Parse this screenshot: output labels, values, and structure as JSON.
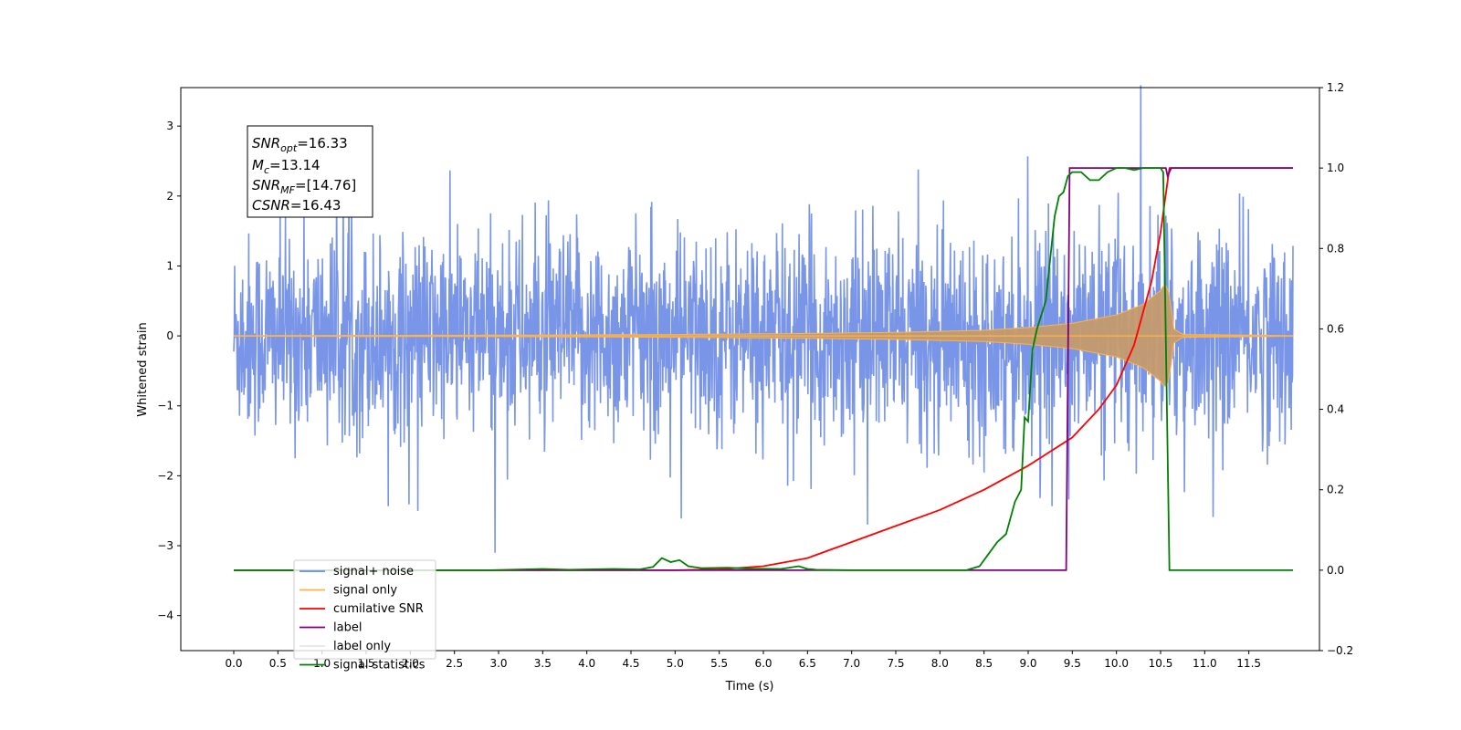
{
  "chart_data": {
    "type": "line",
    "title": "",
    "xlabel": "Time (s)",
    "ylabel": "Whitened strain",
    "ylabel_right": "",
    "xlim": [
      -0.6,
      12.3
    ],
    "ylim": [
      -4.5,
      3.55
    ],
    "ylim_right": [
      -0.2,
      1.2
    ],
    "x_ticks": [
      "0.0",
      "0.5",
      "1.0",
      "1.5",
      "2.0",
      "2.5",
      "3.0",
      "3.5",
      "4.0",
      "4.5",
      "5.0",
      "5.5",
      "6.0",
      "6.5",
      "7.0",
      "7.5",
      "8.0",
      "8.5",
      "9.0",
      "9.5",
      "10.0",
      "10.5",
      "11.0",
      "11.5"
    ],
    "y_ticks": [
      "3",
      "2",
      "1",
      "0",
      "−1",
      "−2",
      "−3",
      "−4"
    ],
    "y_ticks_right": [
      "1.2",
      "1.0",
      "0.8",
      "0.6",
      "0.4",
      "0.2",
      "0.0",
      "−0.2"
    ],
    "grid": false,
    "legend_position": "lower-left",
    "annotation": {
      "snr_opt_label": "SNR",
      "snr_opt_sub": "opt",
      "snr_opt_value": "=16.33",
      "mc_label": "M",
      "mc_sub": "c",
      "mc_value": "=13.14",
      "snr_mf_label": "SNR",
      "snr_mf_sub": "MF",
      "snr_mf_value": "=[14.76]",
      "csnr_label": "CSNR",
      "csnr_value": "=16.43"
    },
    "series": [
      {
        "name": "signal+ noise",
        "color": "#6a8ae6",
        "axis": "left",
        "x_range": [
          0,
          12
        ],
        "envelope_typical": 1.1,
        "envelope_peak": 3.2
      },
      {
        "name": "signal only",
        "color": "#ffb347",
        "axis": "left",
        "x": [
          0,
          3.0,
          5.0,
          6.5,
          7.5,
          8.5,
          9.0,
          9.5,
          10.0,
          10.3,
          10.5,
          10.55,
          10.6,
          10.65,
          10.75,
          12.0
        ],
        "amplitude": [
          0.005,
          0.01,
          0.02,
          0.035,
          0.05,
          0.08,
          0.12,
          0.18,
          0.3,
          0.45,
          0.65,
          0.75,
          0.6,
          0.1,
          0.02,
          0.005
        ]
      },
      {
        "name": "cumilative SNR",
        "color": "#ff0000",
        "axis": "right",
        "x": [
          0,
          5.0,
          5.5,
          6.0,
          6.5,
          7.0,
          7.5,
          8.0,
          8.5,
          9.0,
          9.5,
          9.8,
          10.0,
          10.2,
          10.4,
          10.5,
          10.55,
          10.6,
          11.0,
          12.0
        ],
        "y": [
          0,
          0.0,
          0.002,
          0.01,
          0.03,
          0.07,
          0.11,
          0.15,
          0.2,
          0.26,
          0.33,
          0.4,
          0.46,
          0.56,
          0.72,
          0.84,
          0.92,
          1.0,
          1.0,
          1.0
        ]
      },
      {
        "name": "label",
        "color": "#800080",
        "axis": "right",
        "x": [
          0,
          9.43,
          9.47,
          10.56,
          10.58,
          10.62,
          12.0
        ],
        "y": [
          0,
          0,
          1.0,
          1.0,
          0.98,
          1.0,
          1.0
        ]
      },
      {
        "name": "label only",
        "color": "#e6e6e6",
        "axis": "right",
        "x": [],
        "y": []
      },
      {
        "name": "signal statistics",
        "color": "#008000",
        "axis": "right",
        "x": [
          0,
          2.9,
          3.5,
          3.8,
          4.0,
          4.3,
          4.6,
          4.75,
          4.85,
          4.95,
          5.05,
          5.15,
          5.3,
          5.6,
          5.8,
          6.2,
          6.4,
          6.5,
          6.6,
          7.0,
          8.3,
          8.45,
          8.55,
          8.65,
          8.75,
          8.85,
          8.92,
          8.96,
          9.0,
          9.05,
          9.1,
          9.2,
          9.3,
          9.35,
          9.4,
          9.45,
          9.5,
          9.6,
          9.7,
          9.8,
          9.9,
          10.0,
          10.1,
          10.2,
          10.3,
          10.4,
          10.5,
          10.53,
          10.6,
          10.65,
          12.0
        ],
        "y": [
          0,
          0,
          0.003,
          0.001,
          0.002,
          0.003,
          0.002,
          0.008,
          0.03,
          0.02,
          0.025,
          0.01,
          0.005,
          0.006,
          0.004,
          0.003,
          0.01,
          0.003,
          0.001,
          0,
          0,
          0.01,
          0.04,
          0.07,
          0.09,
          0.17,
          0.2,
          0.38,
          0.37,
          0.55,
          0.6,
          0.67,
          0.88,
          0.93,
          0.94,
          0.98,
          0.99,
          0.99,
          0.97,
          0.97,
          0.99,
          1.0,
          1.0,
          0.995,
          1.0,
          1.0,
          1.0,
          0.99,
          0.0,
          0.0,
          0.0
        ]
      }
    ]
  }
}
